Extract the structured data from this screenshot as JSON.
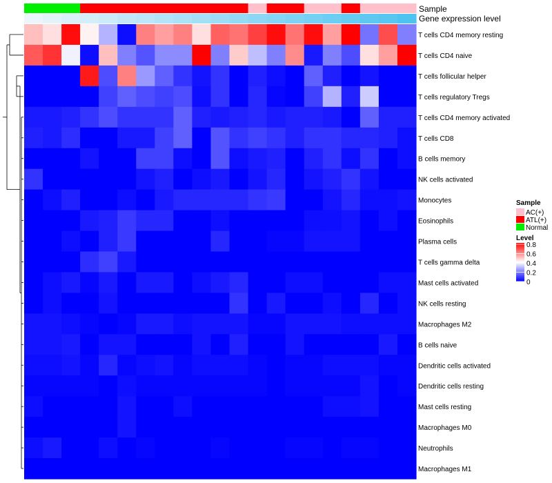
{
  "chart_data": {
    "type": "heatmap",
    "title": "",
    "annotation_tracks": [
      {
        "label": "Sample",
        "values": [
          "Normal",
          "Normal",
          "Normal",
          "ATL(+)",
          "ATL(+)",
          "ATL(+)",
          "ATL(+)",
          "ATL(+)",
          "ATL(+)",
          "ATL(+)",
          "ATL(+)",
          "ATL(+)",
          "AC(+)",
          "ATL(+)",
          "ATL(+)",
          "AC(+)",
          "AC(+)",
          "ATL(+)",
          "AC(+)",
          "AC(+)",
          "AC(+)"
        ]
      },
      {
        "label": "Gene expression level",
        "values": [
          0.0,
          0.05,
          0.1,
          0.15,
          0.2,
          0.25,
          0.3,
          0.35,
          0.4,
          0.45,
          0.5,
          0.55,
          0.6,
          0.65,
          0.7,
          0.75,
          0.8,
          0.85,
          0.9,
          0.95,
          1.0
        ]
      }
    ],
    "rows": [
      "T cells CD4 memory resting",
      "T cells CD4 naive",
      "T cells follicular helper",
      "T cells regulatory  Tregs",
      "T cells CD4 memory activated",
      "T cells CD8",
      "B cells memory",
      "NK cells activated",
      "Monocytes",
      "Eosinophils",
      "Plasma cells",
      "T cells gamma delta",
      "Mast cells activated",
      "NK cells resting",
      "Macrophages M2",
      "B cells naive",
      "Dendritic cells activated",
      "Dendritic cells resting",
      "Mast cells resting",
      "Macrophages M0",
      "Neutrophils",
      "Macrophages M1"
    ],
    "n_columns": 21,
    "values": [
      [
        0.5,
        0.45,
        0.78,
        0.42,
        0.28,
        0.02,
        0.6,
        0.55,
        0.6,
        0.45,
        0.65,
        0.62,
        0.7,
        0.78,
        0.62,
        0.78,
        0.55,
        0.8,
        0.18,
        0.68,
        0.2
      ],
      [
        0.66,
        0.72,
        0.38,
        0.02,
        0.5,
        0.2,
        0.13,
        0.22,
        0.22,
        0.8,
        0.2,
        0.48,
        0.3,
        0.2,
        0.58,
        0.04,
        0.2,
        0.12,
        0.45,
        0.55,
        0.8
      ],
      [
        0.0,
        0.0,
        0.0,
        0.76,
        0.12,
        0.6,
        0.24,
        0.15,
        0.08,
        0.03,
        0.08,
        0.0,
        0.05,
        0.02,
        0.0,
        0.15,
        0.05,
        0.0,
        0.03,
        0.0,
        0.0
      ],
      [
        0.0,
        0.0,
        0.0,
        0.0,
        0.1,
        0.15,
        0.12,
        0.1,
        0.12,
        0.02,
        0.08,
        0.0,
        0.06,
        0.01,
        0.0,
        0.1,
        0.28,
        0.05,
        0.32,
        0.0,
        0.0
      ],
      [
        0.04,
        0.04,
        0.05,
        0.08,
        0.12,
        0.08,
        0.08,
        0.08,
        0.15,
        0.05,
        0.04,
        0.05,
        0.06,
        0.04,
        0.05,
        0.05,
        0.04,
        0.0,
        0.15,
        0.05,
        0.05
      ],
      [
        0.05,
        0.04,
        0.07,
        0.0,
        0.0,
        0.04,
        0.04,
        0.1,
        0.15,
        0.0,
        0.13,
        0.08,
        0.1,
        0.08,
        0.05,
        0.08,
        0.08,
        0.06,
        0.06,
        0.05,
        0.02
      ],
      [
        0.0,
        0.0,
        0.0,
        0.03,
        0.0,
        0.0,
        0.1,
        0.1,
        0.02,
        0.0,
        0.13,
        0.02,
        0.04,
        0.05,
        0.0,
        0.05,
        0.08,
        0.02,
        0.08,
        0.0,
        0.02
      ],
      [
        0.08,
        0.0,
        0.0,
        0.0,
        0.0,
        0.0,
        0.03,
        0.05,
        0.0,
        0.02,
        0.04,
        0.0,
        0.03,
        0.06,
        0.0,
        0.03,
        0.05,
        0.08,
        0.03,
        0.0,
        0.0
      ],
      [
        0.0,
        0.02,
        0.05,
        0.0,
        0.0,
        0.02,
        0.0,
        0.04,
        0.06,
        0.06,
        0.06,
        0.06,
        0.08,
        0.09,
        0.0,
        0.0,
        0.03,
        0.06,
        0.02,
        0.02,
        0.03
      ],
      [
        0.0,
        0.0,
        0.0,
        0.04,
        0.05,
        0.09,
        0.06,
        0.06,
        0.0,
        0.0,
        0.02,
        0.0,
        0.0,
        0.0,
        0.0,
        0.02,
        0.02,
        0.03,
        0.0,
        0.02,
        0.0
      ],
      [
        0.0,
        0.0,
        0.02,
        0.0,
        0.05,
        0.09,
        0.0,
        0.0,
        0.0,
        0.0,
        0.06,
        0.0,
        0.0,
        0.01,
        0.01,
        0.03,
        0.03,
        0.03,
        0.0,
        0.0,
        0.0
      ],
      [
        0.0,
        0.0,
        0.0,
        0.07,
        0.1,
        0.04,
        0.0,
        0.0,
        0.0,
        0.0,
        0.0,
        0.0,
        0.0,
        0.0,
        0.0,
        0.0,
        0.0,
        0.0,
        0.0,
        0.0,
        0.0
      ],
      [
        0.0,
        0.02,
        0.04,
        0.01,
        0.04,
        0.0,
        0.04,
        0.04,
        0.0,
        0.02,
        0.04,
        0.06,
        0.0,
        0.0,
        0.02,
        0.02,
        0.0,
        0.0,
        0.0,
        0.02,
        0.02
      ],
      [
        0.0,
        0.02,
        0.0,
        0.0,
        0.03,
        0.0,
        0.0,
        0.0,
        0.0,
        0.0,
        0.0,
        0.08,
        0.0,
        0.04,
        0.0,
        0.0,
        0.02,
        0.0,
        0.06,
        0.0,
        0.02
      ],
      [
        0.03,
        0.03,
        0.02,
        0.01,
        0.0,
        0.01,
        0.04,
        0.04,
        0.02,
        0.03,
        0.03,
        0.03,
        0.01,
        0.01,
        0.03,
        0.03,
        0.03,
        0.02,
        0.02,
        0.02,
        0.02
      ],
      [
        0.03,
        0.03,
        0.04,
        0.0,
        0.03,
        0.03,
        0.0,
        0.0,
        0.0,
        0.03,
        0.0,
        0.05,
        0.0,
        0.0,
        0.03,
        0.0,
        0.0,
        0.0,
        0.0,
        0.04,
        0.0
      ],
      [
        0.02,
        0.02,
        0.03,
        0.01,
        0.06,
        0.01,
        0.02,
        0.03,
        0.01,
        0.02,
        0.02,
        0.02,
        0.01,
        0.0,
        0.01,
        0.01,
        0.02,
        0.02,
        0.02,
        0.01,
        0.01
      ],
      [
        0.01,
        0.01,
        0.01,
        0.01,
        0.0,
        0.02,
        0.01,
        0.01,
        0.01,
        0.01,
        0.01,
        0.01,
        0.01,
        0.0,
        0.01,
        0.01,
        0.01,
        0.01,
        0.03,
        0.0,
        0.01
      ],
      [
        0.02,
        0.0,
        0.0,
        0.0,
        0.0,
        0.03,
        0.0,
        0.0,
        0.02,
        0.0,
        0.0,
        0.0,
        0.0,
        0.0,
        0.0,
        0.0,
        0.02,
        0.02,
        0.03,
        0.0,
        0.0
      ],
      [
        0.0,
        0.0,
        0.0,
        0.0,
        0.0,
        0.03,
        0.0,
        0.0,
        0.0,
        0.0,
        0.0,
        0.0,
        0.0,
        0.0,
        0.0,
        0.0,
        0.0,
        0.0,
        0.0,
        0.0,
        0.0
      ],
      [
        0.02,
        0.04,
        0.0,
        0.0,
        0.02,
        0.0,
        0.01,
        0.0,
        0.0,
        0.0,
        0.01,
        0.0,
        0.0,
        0.0,
        0.01,
        0.01,
        0.0,
        0.01,
        0.01,
        0.0,
        0.0
      ],
      [
        0.0,
        0.0,
        0.0,
        0.0,
        0.0,
        0.0,
        0.0,
        0.0,
        0.0,
        0.0,
        0.0,
        0.0,
        0.0,
        0.0,
        0.0,
        0.0,
        0.0,
        0.0,
        0.0,
        0.0,
        0.0
      ]
    ],
    "dendrogram": {
      "description": "hierarchical clustering of rows",
      "merges": [
        [
          0,
          1
        ],
        [
          2,
          3
        ],
        [
          "rows 4-21",
          "cluster"
        ]
      ]
    },
    "legend": {
      "sample": {
        "title": "Sample",
        "entries": [
          {
            "label": "AC(+)",
            "color": "#ffc0cb"
          },
          {
            "label": "ATL(+)",
            "color": "#ff0000"
          },
          {
            "label": "Normal",
            "color": "#00ee00"
          }
        ]
      },
      "level": {
        "title": "Level",
        "ticks": [
          0.8,
          0.6,
          0.4,
          0.2,
          0
        ],
        "range": [
          0,
          0.8
        ]
      }
    },
    "colors": {
      "low": "#0000ff",
      "mid": "#ffffff",
      "high": "#ff0000",
      "mid_value": 0.4,
      "expression_start": "#eaf6fb",
      "expression_end": "#4fc3f0"
    }
  }
}
